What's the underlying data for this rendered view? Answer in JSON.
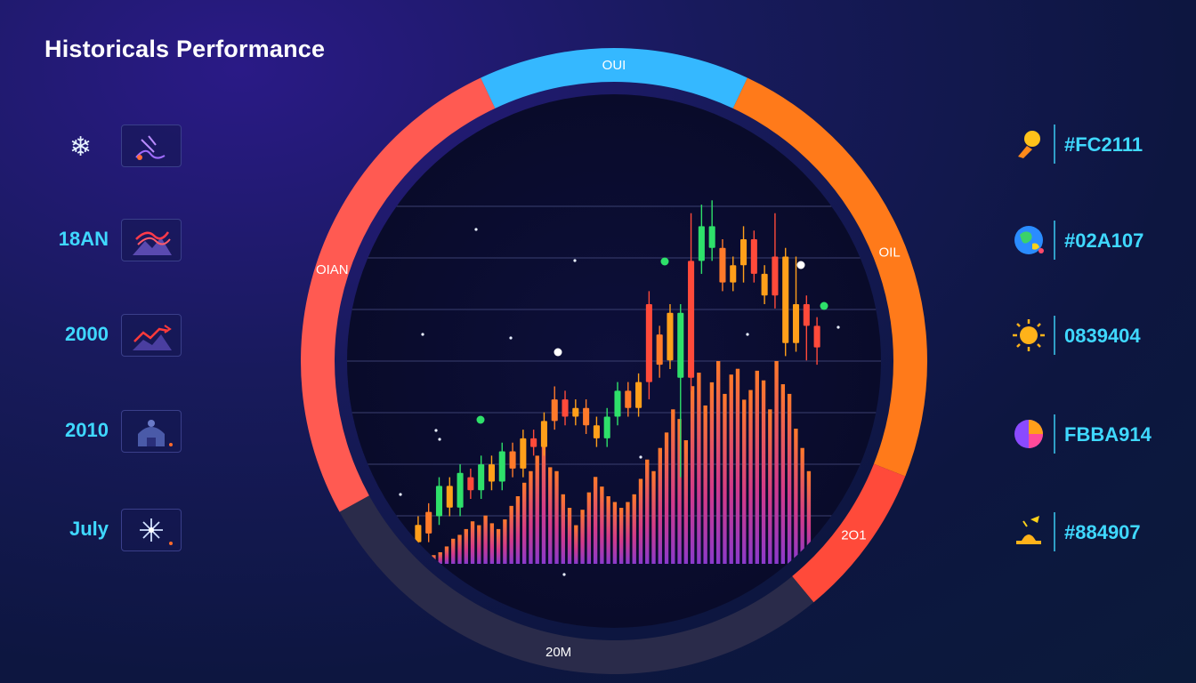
{
  "header": {
    "title": "Historicals Performance"
  },
  "left_items": [
    {
      "label": "",
      "icon": "snowflake-icon"
    },
    {
      "label": "18AN",
      "icon": "mountain-trend-icon"
    },
    {
      "label": "2000",
      "icon": "trend-arrow-icon"
    },
    {
      "label": "2010",
      "icon": "building-icon"
    },
    {
      "label": "July",
      "icon": "sparkle-icon"
    }
  ],
  "right_items": [
    {
      "label": "#FC2111",
      "icon": "lightbulb-icon",
      "color": "#f5a623"
    },
    {
      "label": "#02A107",
      "icon": "globe-icon",
      "color": "#3fb3ff"
    },
    {
      "label": "0839404",
      "icon": "sun-icon",
      "color": "#ffb020"
    },
    {
      "label": "FBBA914",
      "icon": "pie-icon",
      "color": "#ff5aa0"
    },
    {
      "label": "#884907",
      "icon": "lamp-icon",
      "color": "#ffb020"
    }
  ],
  "ring": {
    "segments": [
      {
        "label": "OUI",
        "color": "#35b8ff",
        "value": 0.14
      },
      {
        "label": "OIL",
        "color": "#ff7a1a",
        "value": 0.24
      },
      {
        "label": "2O1",
        "color": "#ff4a3a",
        "value": 0.08
      },
      {
        "label": "20M",
        "color": "#2a2b4a",
        "value": 0.28
      },
      {
        "label": "OIAN",
        "color": "#ff5a52",
        "value": 0.26
      }
    ]
  },
  "chart_data": {
    "type": "candlestick",
    "title": "",
    "candles": [
      {
        "o": 0,
        "c": 8,
        "h": 12,
        "l": -4,
        "color": "#ff9f1a"
      },
      {
        "o": 4,
        "c": 14,
        "h": 18,
        "l": 0,
        "color": "#ff7a2a"
      },
      {
        "o": 12,
        "c": 26,
        "h": 30,
        "l": 8,
        "color": "#2ee06a"
      },
      {
        "o": 26,
        "c": 16,
        "h": 30,
        "l": 12,
        "color": "#ff9f1a"
      },
      {
        "o": 16,
        "c": 32,
        "h": 36,
        "l": 12,
        "color": "#2ee06a"
      },
      {
        "o": 30,
        "c": 24,
        "h": 34,
        "l": 20,
        "color": "#ff4a3a"
      },
      {
        "o": 24,
        "c": 36,
        "h": 40,
        "l": 20,
        "color": "#2ee06a"
      },
      {
        "o": 36,
        "c": 28,
        "h": 40,
        "l": 24,
        "color": "#ff9f1a"
      },
      {
        "o": 28,
        "c": 42,
        "h": 46,
        "l": 24,
        "color": "#2ee06a"
      },
      {
        "o": 42,
        "c": 34,
        "h": 46,
        "l": 30,
        "color": "#ff7a2a"
      },
      {
        "o": 34,
        "c": 48,
        "h": 52,
        "l": 30,
        "color": "#ff9f1a"
      },
      {
        "o": 48,
        "c": 44,
        "h": 52,
        "l": 40,
        "color": "#ff4a3a"
      },
      {
        "o": 44,
        "c": 56,
        "h": 60,
        "l": 40,
        "color": "#ff9f1a"
      },
      {
        "o": 56,
        "c": 66,
        "h": 72,
        "l": 52,
        "color": "#ff7a2a"
      },
      {
        "o": 66,
        "c": 58,
        "h": 70,
        "l": 54,
        "color": "#ff4a3a"
      },
      {
        "o": 58,
        "c": 62,
        "h": 66,
        "l": 54,
        "color": "#ff9f1a"
      },
      {
        "o": 62,
        "c": 54,
        "h": 66,
        "l": 50,
        "color": "#ff7a2a"
      },
      {
        "o": 54,
        "c": 48,
        "h": 58,
        "l": 44,
        "color": "#ff9f1a"
      },
      {
        "o": 48,
        "c": 58,
        "h": 62,
        "l": 44,
        "color": "#2ee06a"
      },
      {
        "o": 58,
        "c": 70,
        "h": 74,
        "l": 54,
        "color": "#2ee06a"
      },
      {
        "o": 70,
        "c": 62,
        "h": 74,
        "l": 58,
        "color": "#ff7a2a"
      },
      {
        "o": 62,
        "c": 74,
        "h": 78,
        "l": 58,
        "color": "#ff9f1a"
      },
      {
        "o": 74,
        "c": 110,
        "h": 116,
        "l": 66,
        "color": "#ff4a3a"
      },
      {
        "o": 96,
        "c": 82,
        "h": 100,
        "l": 76,
        "color": "#ff7a2a"
      },
      {
        "o": 84,
        "c": 106,
        "h": 110,
        "l": 80,
        "color": "#ff9f1a"
      },
      {
        "o": 106,
        "c": 76,
        "h": 110,
        "l": 30,
        "color": "#2ee06a"
      },
      {
        "o": 76,
        "c": 130,
        "h": 152,
        "l": 70,
        "color": "#ff4a3a"
      },
      {
        "o": 130,
        "c": 146,
        "h": 156,
        "l": 124,
        "color": "#2ee06a"
      },
      {
        "o": 146,
        "c": 136,
        "h": 158,
        "l": 130,
        "color": "#2ee06a"
      },
      {
        "o": 136,
        "c": 120,
        "h": 140,
        "l": 116,
        "color": "#ff7a2a"
      },
      {
        "o": 120,
        "c": 128,
        "h": 132,
        "l": 116,
        "color": "#ff9f1a"
      },
      {
        "o": 128,
        "c": 140,
        "h": 146,
        "l": 120,
        "color": "#ff9f1a"
      },
      {
        "o": 140,
        "c": 124,
        "h": 144,
        "l": 120,
        "color": "#ff4a3a"
      },
      {
        "o": 124,
        "c": 114,
        "h": 128,
        "l": 110,
        "color": "#ff9f1a"
      },
      {
        "o": 114,
        "c": 132,
        "h": 152,
        "l": 108,
        "color": "#ff4a3a"
      },
      {
        "o": 132,
        "c": 92,
        "h": 136,
        "l": 86,
        "color": "#ff9f1a"
      },
      {
        "o": 92,
        "c": 110,
        "h": 132,
        "l": 88,
        "color": "#ff9f1a"
      },
      {
        "o": 110,
        "c": 100,
        "h": 114,
        "l": 84,
        "color": "#ff4a3a"
      },
      {
        "o": 100,
        "c": 90,
        "h": 104,
        "l": 82,
        "color": "#ff4a3a"
      }
    ],
    "volumes": [
      6,
      9,
      12,
      18,
      26,
      30,
      36,
      44,
      40,
      50,
      42,
      36,
      46,
      60,
      70,
      84,
      96,
      112,
      138,
      100,
      96,
      72,
      58,
      40,
      56,
      74,
      90,
      80,
      70,
      64,
      58,
      64,
      72,
      88,
      108,
      96,
      120,
      136,
      160,
      150,
      128,
      184,
      198,
      164,
      188,
      210,
      176,
      196,
      202,
      170,
      180,
      200,
      190,
      160,
      210,
      186,
      176,
      140,
      120,
      96
    ],
    "ylim": [
      -10,
      170
    ]
  }
}
